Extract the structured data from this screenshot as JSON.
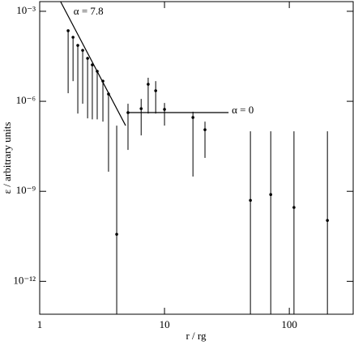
{
  "chart_data": {
    "type": "scatter",
    "log_x": true,
    "log_y": true,
    "color": "#000000",
    "xlabel": "r / rg",
    "ylabel": "ε / arbitrary units",
    "xlim": [
      1,
      325
    ],
    "ylim": [
      8e-14,
      0.0021
    ],
    "xticks": [
      1,
      10,
      100
    ],
    "yticks": [
      {
        "value": 0.001,
        "label": "10⁻³"
      },
      {
        "value": 1e-06,
        "label": "10⁻⁶"
      },
      {
        "value": 1e-09,
        "label": "10⁻⁹"
      },
      {
        "value": 1e-12,
        "label": "10⁻¹²"
      }
    ],
    "points": {
      "x": [
        1.69,
        1.85,
        2.02,
        2.21,
        2.42,
        2.64,
        2.89,
        3.21,
        3.56,
        4.14,
        5.1,
        6.5,
        7.4,
        8.5,
        10,
        16.9,
        21.1,
        48.8,
        71,
        109,
        202
      ],
      "y": [
        0.000225,
        0.000136,
        7.3e-05,
        5e-05,
        2.7e-05,
        1.64e-05,
        1e-05,
        4.7e-06,
        1.75e-06,
        3.7e-11,
        4.2e-07,
        5.7e-07,
        3.7e-06,
        2.25e-06,
        5.4e-07,
        2.9e-07,
        1.13e-07,
        5e-10,
        7.8e-10,
        2.9e-10,
        1.07e-10
      ],
      "upper": [
        0.000225,
        0.000136,
        7.3e-05,
        5e-05,
        2.7e-05,
        1.64e-05,
        1e-05,
        4.7e-06,
        1.75e-06,
        1.55e-07,
        8.3e-07,
        1.2e-06,
        6.1e-06,
        4.7e-06,
        8.8e-07,
        4.5e-07,
        2.1e-07,
        1e-07,
        1e-07,
        1e-07,
        1e-07
      ],
      "lower": [
        1.86e-06,
        4.7e-06,
        3.9e-07,
        8.3e-07,
        2.7e-07,
        2.5e-07,
        2.5e-07,
        2.1e-07,
        4.5e-09,
        8e-14,
        2.4e-08,
        7.3e-08,
        3.9e-07,
        3.9e-07,
        1.55e-07,
        3.1e-09,
        1.3e-08,
        8e-14,
        8e-14,
        8e-14,
        8e-14
      ]
    },
    "fits": [
      {
        "label": "α = 7.8",
        "x": [
          1.47,
          4.88
        ],
        "y": [
          0.0021,
          1.55e-07
        ]
      },
      {
        "label": "α = 0",
        "x": [
          5.1,
          32.6
        ],
        "y": [
          4.2e-07,
          4.2e-07
        ]
      }
    ]
  }
}
